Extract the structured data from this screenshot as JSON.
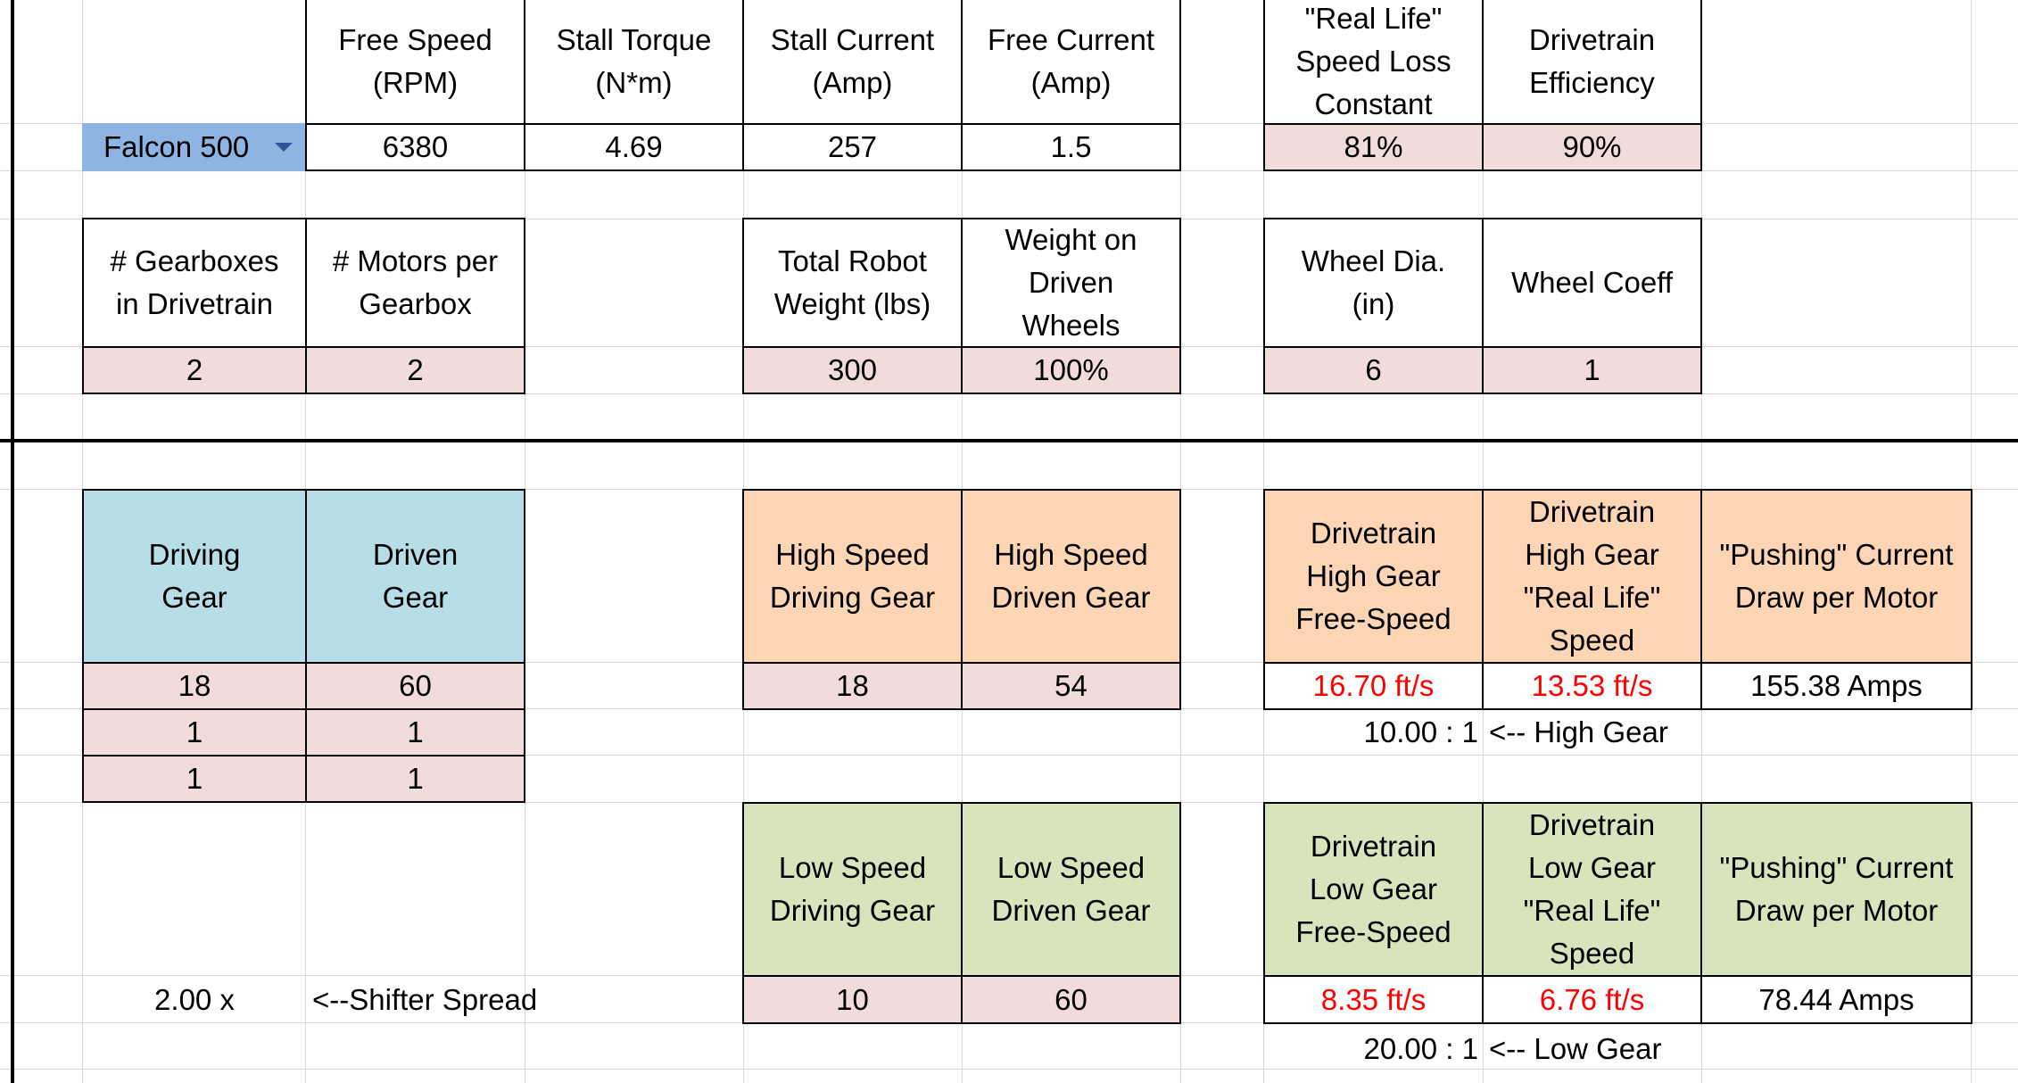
{
  "motor": {
    "selected": "Falcon 500",
    "headers": {
      "free_speed": "Free Speed\n(RPM)",
      "stall_torque": "Stall Torque\n(N*m)",
      "stall_current": "Stall Current\n(Amp)",
      "free_current": "Free Current\n(Amp)",
      "speed_loss": "\"Real Life\"\nSpeed Loss\nConstant",
      "efficiency": "Drivetrain\nEfficiency"
    },
    "values": {
      "free_speed": "6380",
      "stall_torque": "4.69",
      "stall_current": "257",
      "free_current": "1.5",
      "speed_loss": "81%",
      "efficiency": "90%"
    }
  },
  "robot": {
    "headers": {
      "gearboxes": "# Gearboxes\nin Drivetrain",
      "motors_per_gearbox": "# Motors per\nGearbox",
      "total_weight": "Total Robot\nWeight (lbs)",
      "weight_on_driven": "Weight on\nDriven\nWheels",
      "wheel_dia": "Wheel Dia.\n(in)",
      "wheel_coeff": "Wheel Coeff"
    },
    "values": {
      "gearboxes": "2",
      "motors_per_gearbox": "2",
      "total_weight": "300",
      "weight_on_driven": "100%",
      "wheel_dia": "6",
      "wheel_coeff": "1"
    }
  },
  "gear_stages": {
    "driving_header": "Driving\nGear",
    "driven_header": "Driven\nGear",
    "rows": [
      {
        "driving": "18",
        "driven": "60"
      },
      {
        "driving": "1",
        "driven": "1"
      },
      {
        "driving": "1",
        "driven": "1"
      }
    ]
  },
  "high": {
    "driving_header": "High Speed\nDriving Gear",
    "driven_header": "High Speed\nDriven Gear",
    "driving": "18",
    "driven": "54",
    "free_speed_header": "Drivetrain\nHigh Gear\nFree-Speed",
    "real_speed_header": "Drivetrain\nHigh Gear\n\"Real Life\"\nSpeed",
    "current_header": "\"Pushing\" Current\nDraw per Motor",
    "free_speed": "16.70 ft/s",
    "real_speed": "13.53 ft/s",
    "current": "155.38 Amps",
    "ratio": "10.00 : 1",
    "ratio_label": "<-- High Gear"
  },
  "low": {
    "driving_header": "Low Speed\nDriving Gear",
    "driven_header": "Low Speed\nDriven Gear",
    "driving": "10",
    "driven": "60",
    "free_speed_header": "Drivetrain\nLow Gear\nFree-Speed",
    "real_speed_header": "Drivetrain\nLow Gear\n\"Real Life\"\nSpeed",
    "current_header": "\"Pushing\" Current\nDraw per Motor",
    "free_speed": "8.35 ft/s",
    "real_speed": "6.76 ft/s",
    "current": "78.44 Amps",
    "ratio": "20.00 : 1",
    "ratio_label": "<-- Low Gear"
  },
  "shifter": {
    "value": "2.00 x",
    "label": "<--Shifter Spread"
  },
  "colors": {
    "input_fill": "#f2dcdb",
    "stage_header_fill": "#b7dde8",
    "high_header_fill": "#fcd5b4",
    "low_header_fill": "#d8e4bc",
    "selection_fill": "#8db4e2",
    "output_speed_text": "#ff0000"
  }
}
